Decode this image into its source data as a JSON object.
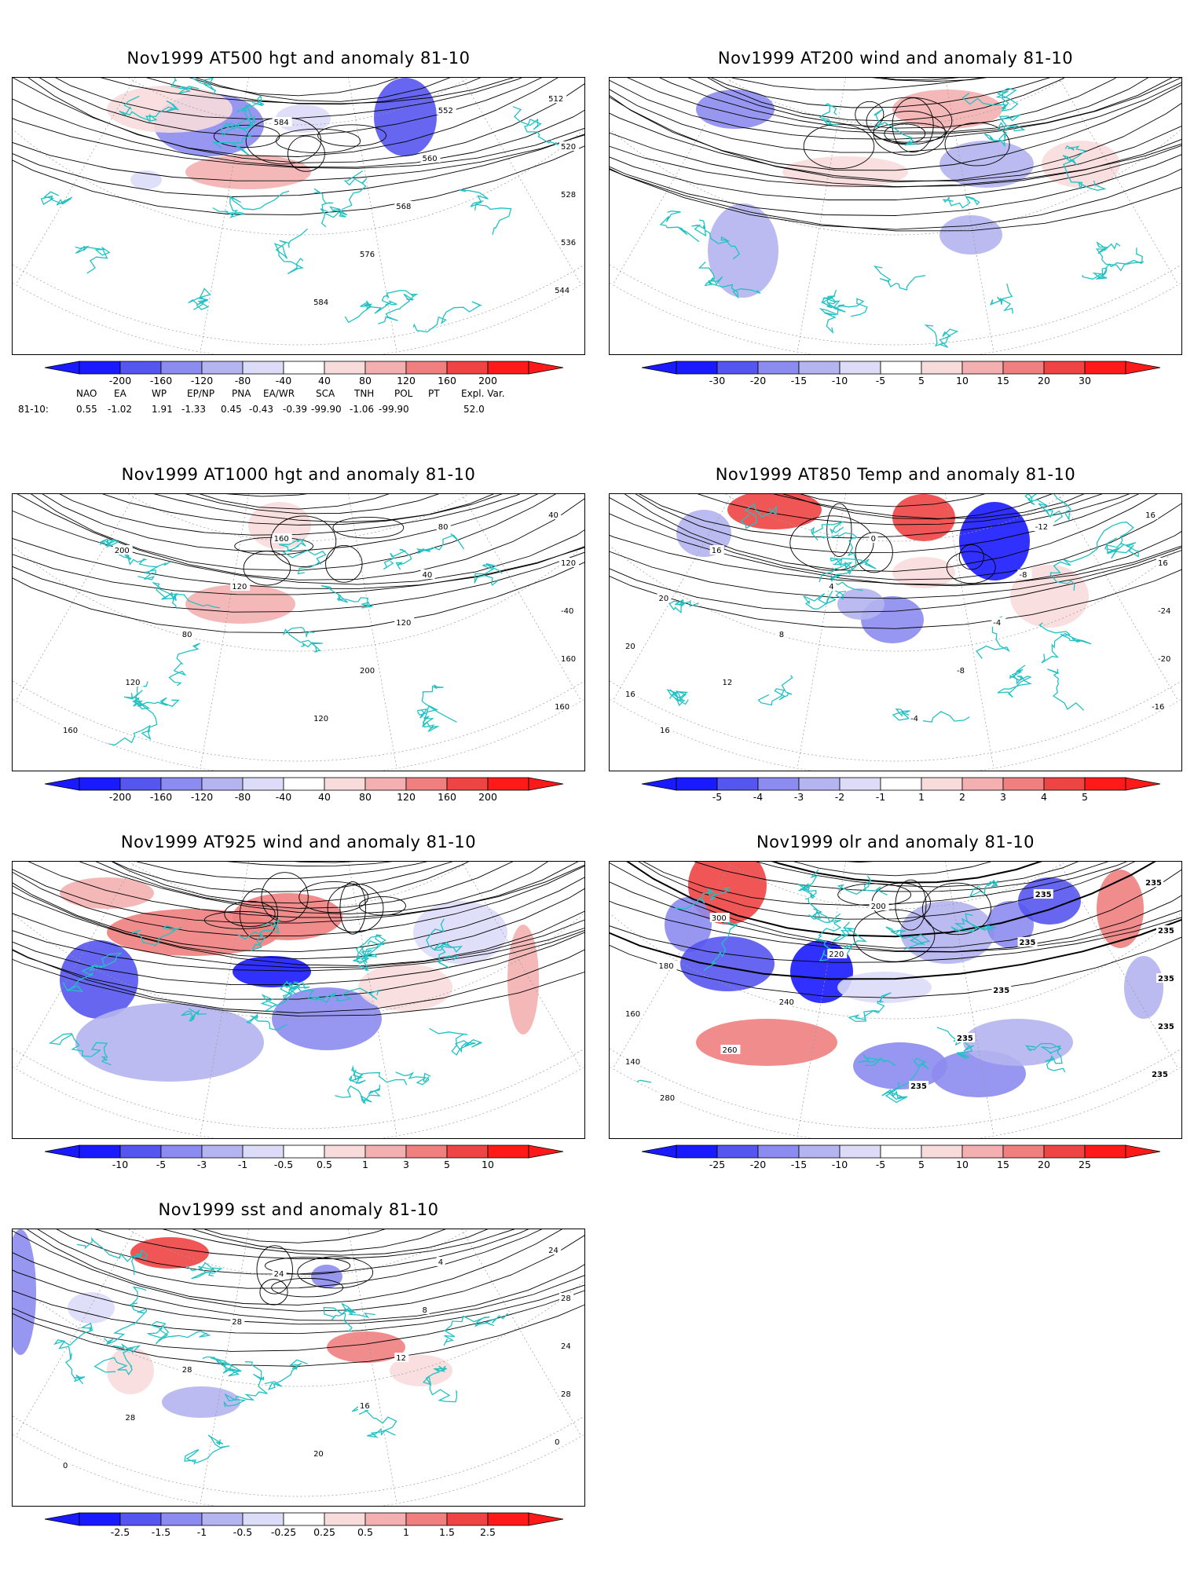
{
  "panels": [
    {
      "id": "p500",
      "title": "Nov1999 AT500 hgt and anomaly 81-10",
      "contour_labels": [
        "512",
        "520",
        "528",
        "536",
        "544",
        "552",
        "560",
        "568",
        "576",
        "584",
        "584"
      ],
      "colorbar": {
        "ticks": [
          "-200",
          "-160",
          "-120",
          "-80",
          "-40",
          "40",
          "80",
          "120",
          "160",
          "200"
        ]
      }
    },
    {
      "id": "p200",
      "title": "Nov1999 AT200 wind and anomaly 81-10",
      "contour_labels": [],
      "colorbar": {
        "ticks": [
          "-30",
          "-20",
          "-15",
          "-10",
          "-5",
          "5",
          "10",
          "15",
          "20",
          "30"
        ]
      }
    },
    {
      "id": "p1000",
      "title": "Nov1999 AT1000 hgt and anomaly 81-10",
      "contour_labels": [
        "40",
        "120",
        "-40",
        "160",
        "160",
        "80",
        "40",
        "120",
        "200",
        "120",
        "160",
        "120",
        "80",
        "120",
        "160",
        "200"
      ],
      "colorbar": {
        "ticks": [
          "-200",
          "-160",
          "-120",
          "-80",
          "-40",
          "40",
          "80",
          "120",
          "160",
          "200"
        ]
      }
    },
    {
      "id": "p850",
      "title": "Nov1999 AT850 Temp and anomaly 81-10",
      "contour_labels": [
        "16",
        "16",
        "-24",
        "-20",
        "-16",
        "-12",
        "-8",
        "-4",
        "-8",
        "-4",
        "0",
        "4",
        "8",
        "12",
        "16",
        "16",
        "20",
        "20",
        "16"
      ],
      "colorbar": {
        "ticks": [
          "-5",
          "-4",
          "-3",
          "-2",
          "-1",
          "1",
          "2",
          "3",
          "4",
          "5"
        ]
      }
    },
    {
      "id": "p925",
      "title": "Nov1999 AT925 wind and anomaly 81-10",
      "contour_labels": [],
      "colorbar": {
        "ticks": [
          "-10",
          "-5",
          "-3",
          "-1",
          "-0.5",
          "0.5",
          "1",
          "3",
          "5",
          "10"
        ]
      }
    },
    {
      "id": "polr",
      "title": "Nov1999 olr and anomaly 81-10",
      "contour_labels": [
        "235",
        "235",
        "235",
        "235",
        "235",
        "235",
        "235",
        "235",
        "235",
        "235",
        "200",
        "220",
        "240",
        "260",
        "280",
        "300",
        "180",
        "160",
        "140"
      ],
      "colorbar": {
        "ticks": [
          "-25",
          "-20",
          "-15",
          "-10",
          "-5",
          "5",
          "10",
          "15",
          "20",
          "25"
        ]
      }
    },
    {
      "id": "psst",
      "title": "Nov1999 sst and anomaly 81-10",
      "contour_labels": [
        "24",
        "28",
        "24",
        "28",
        "0",
        "4",
        "8",
        "12",
        "16",
        "20",
        "24",
        "28",
        "28",
        "28",
        "0"
      ],
      "colorbar": {
        "ticks": [
          "-2.5",
          "-1.5",
          "-1",
          "-0.5",
          "-0.25",
          "0.25",
          "0.5",
          "1",
          "1.5",
          "2.5"
        ]
      }
    }
  ],
  "teleconnection": {
    "headers": [
      "NAO",
      "EA",
      "WP",
      "EP/NP",
      "PNA",
      "EA/WR",
      "SCA",
      "TNH",
      "POL",
      "PT",
      "Expl. Var."
    ],
    "row_label": "81-10:",
    "values": [
      "0.55",
      "-1.02",
      "1.91",
      "-1.33",
      "0.45",
      "-0.43",
      "-0.39",
      "-99.90",
      "-1.06",
      "-99.90",
      "52.0"
    ]
  },
  "colors": {
    "coast": "#22c1c3",
    "colorbar_fill": [
      "#1a1aff",
      "#5555f0",
      "#8c8cf0",
      "#b4b4f0",
      "#dcdcf8",
      "#ffffff",
      "#f8dcdc",
      "#f4b0b0",
      "#f08080",
      "#ee4444",
      "#ff1a1a"
    ]
  }
}
